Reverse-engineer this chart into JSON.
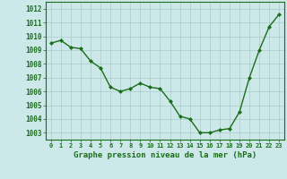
{
  "x": [
    0,
    1,
    2,
    3,
    4,
    5,
    6,
    7,
    8,
    9,
    10,
    11,
    12,
    13,
    14,
    15,
    16,
    17,
    18,
    19,
    20,
    21,
    22,
    23
  ],
  "y": [
    1009.5,
    1009.7,
    1009.2,
    1009.1,
    1008.2,
    1007.7,
    1006.3,
    1006.0,
    1006.2,
    1006.6,
    1006.3,
    1006.2,
    1005.3,
    1004.2,
    1004.0,
    1003.0,
    1003.0,
    1003.2,
    1003.3,
    1004.5,
    1007.0,
    1009.0,
    1010.7,
    1011.6
  ],
  "line_color": "#1a6e1a",
  "marker": "D",
  "marker_size": 2.0,
  "bg_color": "#cce8e8",
  "grid_color": "#aacccc",
  "xlabel": "Graphe pression niveau de la mer (hPa)",
  "xlabel_color": "#1a6e1a",
  "tick_color": "#1a6e1a",
  "xlim": [
    -0.5,
    23.5
  ],
  "ylim": [
    1002.5,
    1012.5
  ],
  "yticks": [
    1003,
    1004,
    1005,
    1006,
    1007,
    1008,
    1009,
    1010,
    1011,
    1012
  ],
  "xticks": [
    0,
    1,
    2,
    3,
    4,
    5,
    6,
    7,
    8,
    9,
    10,
    11,
    12,
    13,
    14,
    15,
    16,
    17,
    18,
    19,
    20,
    21,
    22,
    23
  ],
  "line_width": 1.0,
  "axis_color": "#1a6e1a",
  "xlabel_fontsize": 6.5,
  "xtick_fontsize": 5.0,
  "ytick_fontsize": 5.5
}
